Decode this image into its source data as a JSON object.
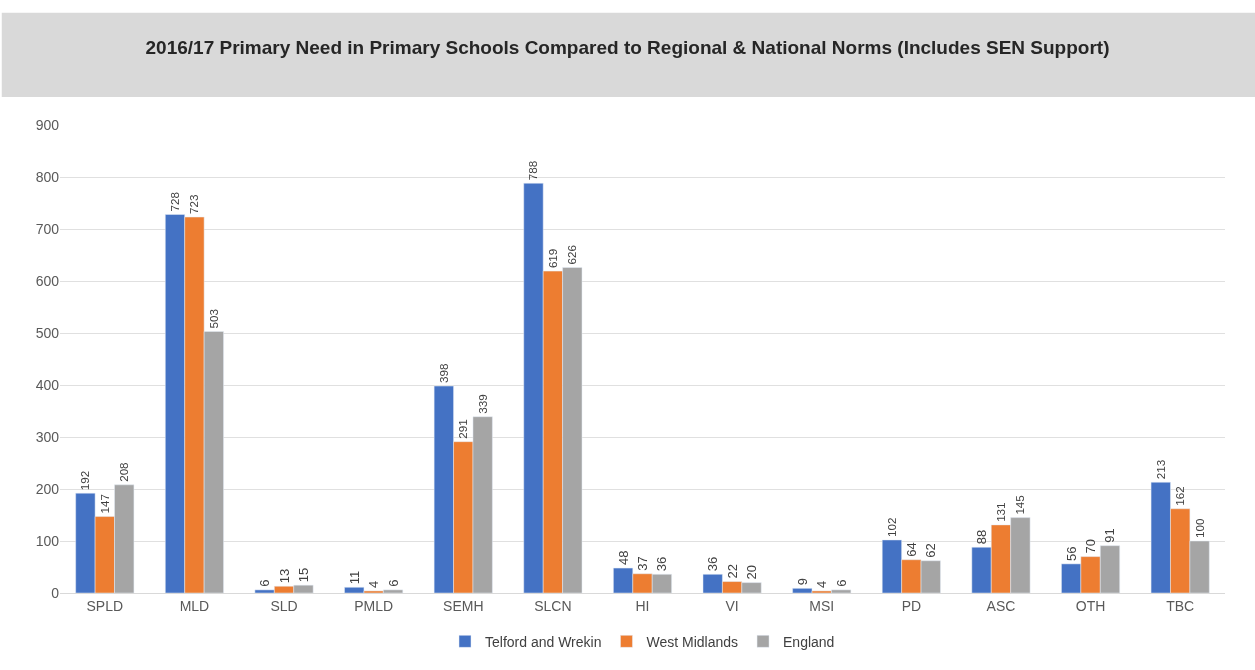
{
  "chart_data": {
    "type": "bar",
    "title": "2016/17 Primary Need in Primary Schools Compared to Regional & National Norms (Includes SEN Support)",
    "categories": [
      "SPLD",
      "MLD",
      "SLD",
      "PMLD",
      "SEMH",
      "SLCN",
      "HI",
      "VI",
      "MSI",
      "PD",
      "ASC",
      "OTH",
      "TBC"
    ],
    "series": [
      {
        "name": "Telford and Wrekin",
        "color": "#4472c4",
        "values": [
          192,
          728,
          6,
          11,
          398,
          788,
          48,
          36,
          9,
          102,
          88,
          56,
          213
        ]
      },
      {
        "name": "West Midlands",
        "color": "#ed7d31",
        "values": [
          147,
          723,
          13,
          4,
          291,
          619,
          37,
          22,
          4,
          64,
          131,
          70,
          162
        ]
      },
      {
        "name": "England",
        "color": "#a5a5a5",
        "values": [
          208,
          503,
          15,
          6,
          339,
          626,
          36,
          20,
          6,
          62,
          145,
          91,
          100
        ]
      }
    ],
    "ylim": [
      0,
      900
    ],
    "yticks": [
      0,
      100,
      200,
      300,
      400,
      500,
      600,
      700,
      800,
      900
    ],
    "grid": "y",
    "legend": "bottom",
    "data_labels": true
  }
}
